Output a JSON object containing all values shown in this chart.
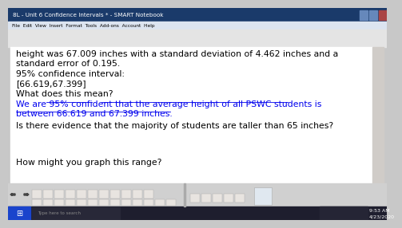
{
  "title_bar": "8L - Unit 6 Confidence Intervals * - SMART Notebook",
  "menu_items": "File  Edit  View  Insert  Format  Tools  Add-ons  Account  Help",
  "line1": "height was 67.009 inches with a standard deviation of 4.462 inches and a",
  "line2": "standard error of 0.195.",
  "line3": "95% confidence interval:",
  "line4": "[66.619,67.399]",
  "line5": "What does this mean?",
  "blue_line1": "We are 95% confident that the average height of all PSWC students is",
  "blue_line2": "between 66.619 and 67.399 inches.",
  "line8": "Is there evidence that the majority of students are taller than 65 inches?",
  "line9": "How might you graph this range?",
  "text_color": "#000000",
  "blue_color": "#0000ee",
  "content_bg": "#ffffff",
  "window_bg": "#c8c8c8",
  "titlebar_color": "#1a3a6a",
  "menubar_color": "#dce4f0",
  "toolbar_color": "#e4e4e4",
  "taskbar_color": "#1e1e2e",
  "scrollbar_color": "#d0ccc8",
  "time1": "9:53 AM",
  "time2": "4/23/2020",
  "search_text": "Type here to search"
}
